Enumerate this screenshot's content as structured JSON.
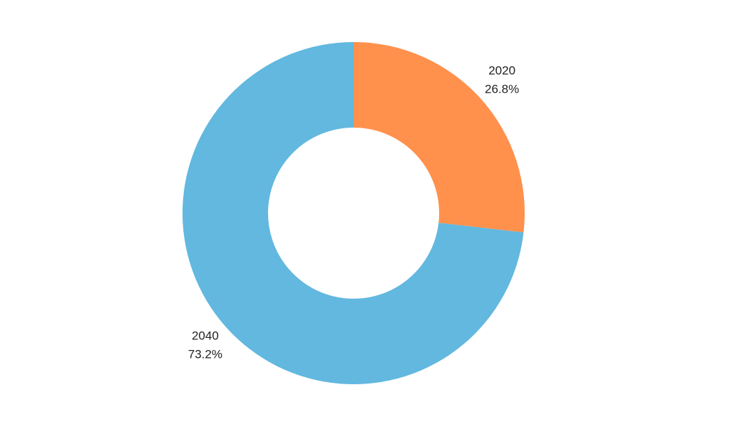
{
  "chart_data": {
    "type": "donut",
    "categories": [
      "2020",
      "2040"
    ],
    "values": [
      26.8,
      73.2
    ],
    "value_labels": [
      "26.8%",
      "73.2%"
    ],
    "colors": [
      "#ff914d",
      "#62b8df"
    ]
  }
}
